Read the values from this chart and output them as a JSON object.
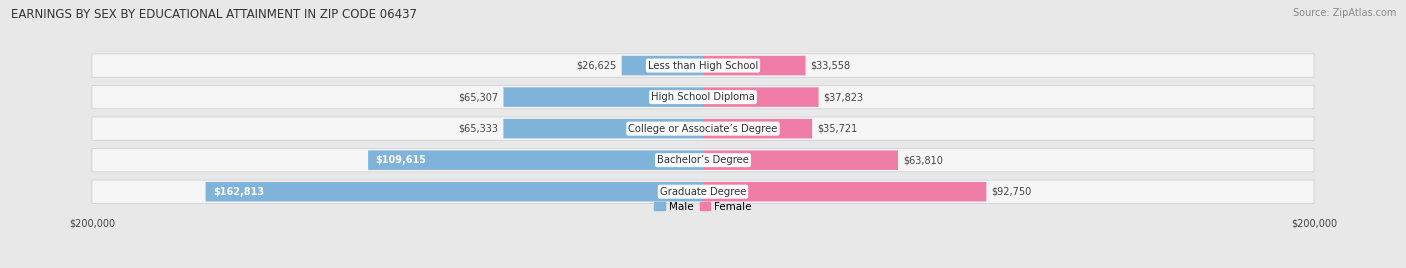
{
  "title": "EARNINGS BY SEX BY EDUCATIONAL ATTAINMENT IN ZIP CODE 06437",
  "source": "Source: ZipAtlas.com",
  "categories": [
    "Less than High School",
    "High School Diploma",
    "College or Associate’s Degree",
    "Bachelor’s Degree",
    "Graduate Degree"
  ],
  "male_values": [
    26625,
    65307,
    65333,
    109615,
    162813
  ],
  "female_values": [
    33558,
    37823,
    35721,
    63810,
    92750
  ],
  "male_color": "#7fb3d9",
  "female_color": "#f07ca8",
  "max_value": 200000,
  "bg_color": "#e8e8e8",
  "row_bg_color": "#f5f5f5",
  "title_fontsize": 8.5,
  "source_fontsize": 7,
  "label_fontsize": 7.2,
  "value_fontsize": 7.0,
  "legend_fontsize": 7.5
}
